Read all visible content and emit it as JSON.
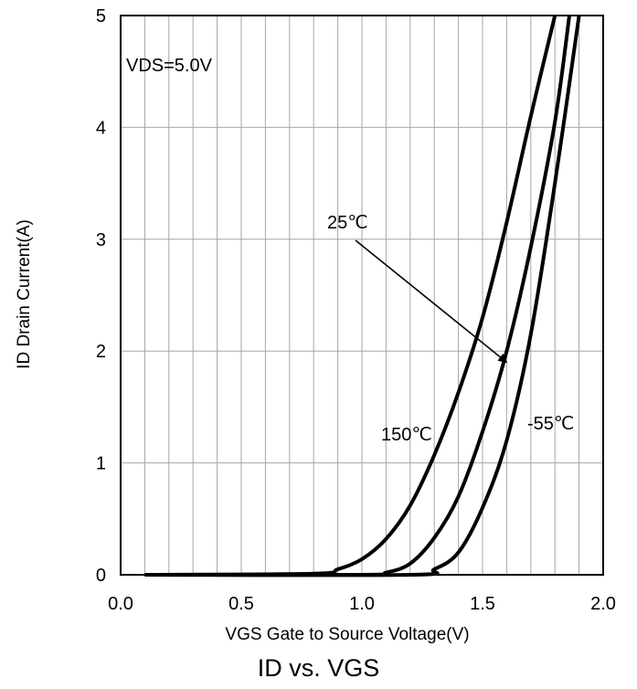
{
  "caption": "ID vs. VGS",
  "colors": {
    "curve": "#000000",
    "grid": "#a6a6a6",
    "frame": "#000000",
    "background": "#ffffff"
  },
  "chart_data": {
    "type": "line",
    "title": "",
    "xlabel": "VGS Gate to Source Voltage(V)",
    "ylabel": "ID Drain Current(A)",
    "xlim": [
      0.0,
      2.0
    ],
    "ylim": [
      0,
      5
    ],
    "x_ticks": [
      "0.0",
      "0.5",
      "1.0",
      "1.5",
      "2.0"
    ],
    "y_ticks": [
      "0",
      "1",
      "2",
      "3",
      "4",
      "5"
    ],
    "x_minor_step": 0.1,
    "y_minor_step": 1,
    "grid": true,
    "legend": "none",
    "series": [
      {
        "name": "150℃",
        "x": [
          0.1,
          0.8,
          0.9,
          1.0,
          1.1,
          1.2,
          1.3,
          1.4,
          1.5,
          1.6,
          1.7,
          1.8
        ],
        "y": [
          0,
          0.01,
          0.05,
          0.14,
          0.32,
          0.62,
          1.07,
          1.63,
          2.3,
          3.15,
          4.1,
          5.0
        ]
      },
      {
        "name": "25℃",
        "x": [
          0.1,
          1.0,
          1.1,
          1.2,
          1.3,
          1.4,
          1.5,
          1.6,
          1.7,
          1.8,
          1.86
        ],
        "y": [
          0,
          0.0,
          0.02,
          0.1,
          0.33,
          0.7,
          1.28,
          2.0,
          2.93,
          4.05,
          5.0
        ]
      },
      {
        "name": "-55℃",
        "x": [
          0.1,
          1.2,
          1.3,
          1.4,
          1.5,
          1.6,
          1.7,
          1.8,
          1.9
        ],
        "y": [
          0,
          0.0,
          0.05,
          0.2,
          0.6,
          1.2,
          2.15,
          3.5,
          5.0
        ]
      }
    ],
    "annotations": [
      {
        "text": "VDS=5.0V"
      },
      {
        "text": "25℃",
        "arrow_to": [
          1.6,
          1.9
        ]
      },
      {
        "text": "150℃"
      },
      {
        "text": "-55℃"
      }
    ]
  }
}
